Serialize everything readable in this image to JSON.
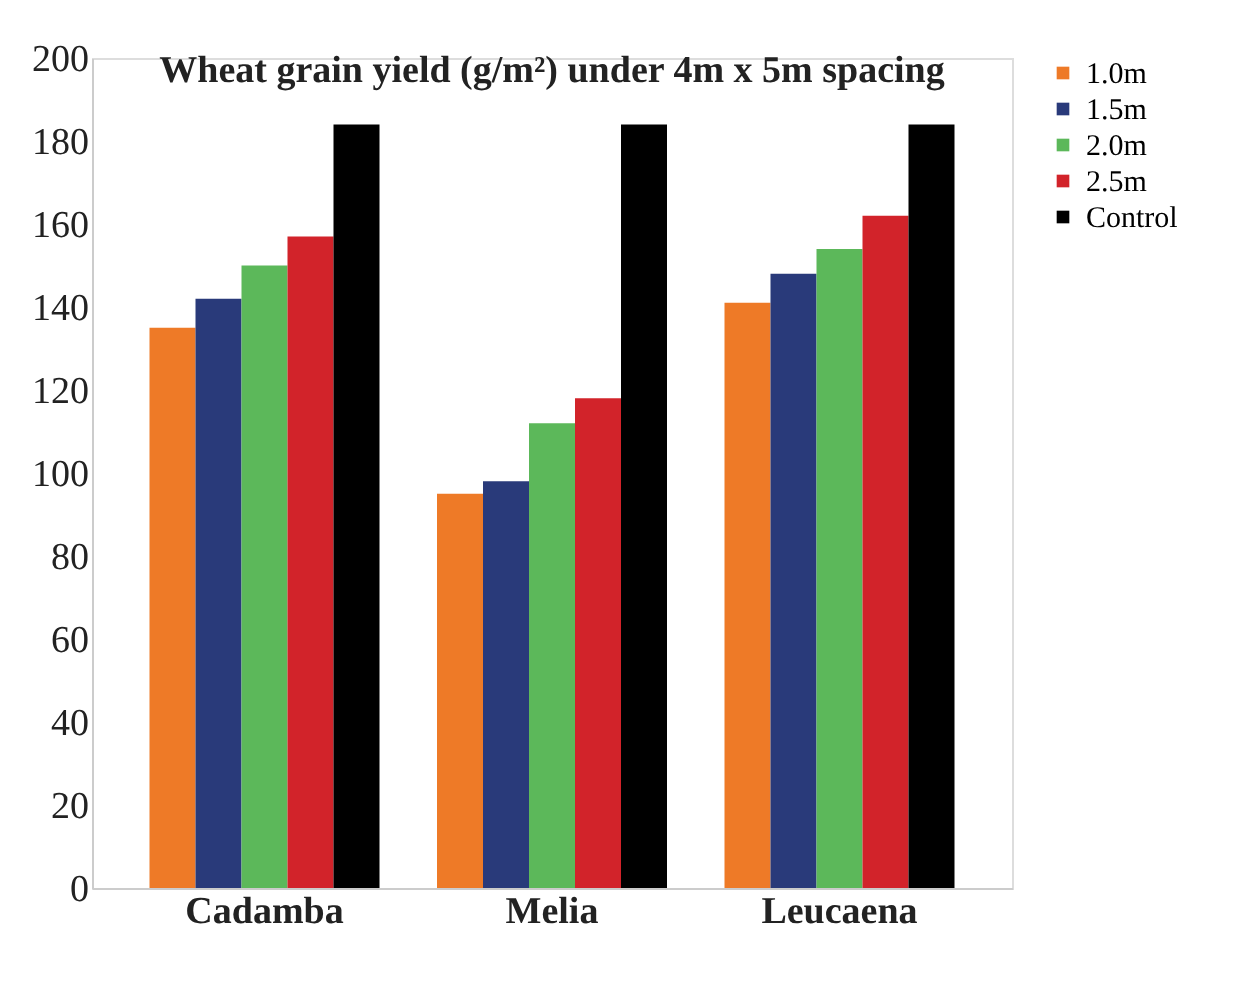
{
  "chart_data": {
    "type": "bar",
    "title": "Wheat grain yield (g/m²) under 4m x 5m spacing",
    "categories": [
      "Cadamba",
      "Melia",
      "Leucaena"
    ],
    "series": [
      {
        "name": "1.0m",
        "color": "#ee7a27",
        "values": [
          135,
          95,
          141
        ]
      },
      {
        "name": "1.5m",
        "color": "#293a7a",
        "values": [
          142,
          98,
          148
        ]
      },
      {
        "name": "2.0m",
        "color": "#5cb85a",
        "values": [
          150,
          112,
          154
        ]
      },
      {
        "name": "2.5m",
        "color": "#d2232a",
        "values": [
          157,
          118,
          162
        ]
      },
      {
        "name": "Control",
        "color": "#000000",
        "values": [
          184,
          184,
          184
        ]
      }
    ],
    "ylim": [
      0,
      200
    ],
    "yticks": [
      0,
      20,
      40,
      60,
      80,
      100,
      120,
      140,
      160,
      180,
      200
    ],
    "grid": false,
    "legend": "right"
  }
}
